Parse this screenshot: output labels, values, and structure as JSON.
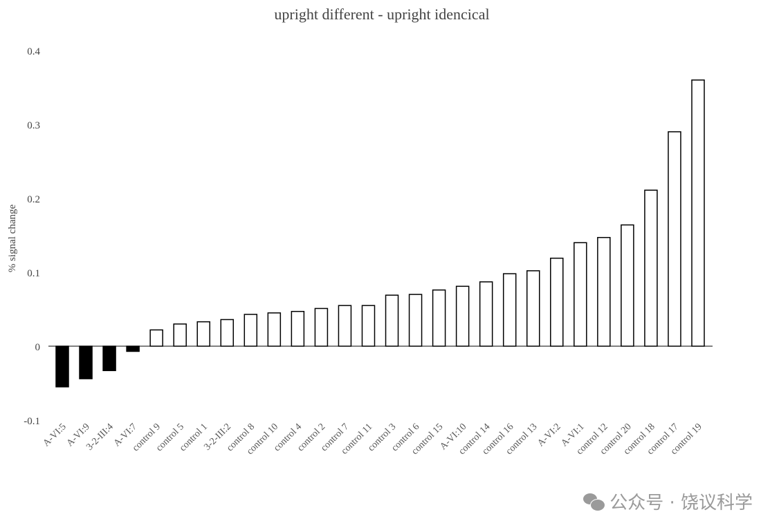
{
  "chart_data": {
    "type": "bar",
    "title": "upright different - upright idencical",
    "xlabel": "",
    "ylabel": "% signal change",
    "ylim": [
      -0.1,
      0.4
    ],
    "yticks": [
      -0.1,
      0,
      0.1,
      0.2,
      0.3,
      0.4
    ],
    "ytick_labels": [
      "-0.1",
      "0",
      "0.1",
      "0.2",
      "0.3",
      "0.4"
    ],
    "grid": false,
    "categories": [
      "A-VI:5",
      "A-VI:9",
      "3-2-III:4",
      "A-VI:7",
      "control 9",
      "control 5",
      "control 1",
      "3-2-III:2",
      "control 8",
      "control 10",
      "control 4",
      "control 2",
      "control 7",
      "control 11",
      "control 3",
      "control 6",
      "control 15",
      "A-VI:10",
      "control 14",
      "control 16",
      "control 13",
      "A-VI:2",
      "A-VI:1",
      "control 12",
      "control 20",
      "control 18",
      "control 17",
      "control 19"
    ],
    "values": [
      -0.055,
      -0.044,
      -0.033,
      -0.007,
      0.022,
      0.03,
      0.033,
      0.036,
      0.043,
      0.045,
      0.047,
      0.051,
      0.055,
      0.055,
      0.069,
      0.07,
      0.076,
      0.081,
      0.087,
      0.098,
      0.102,
      0.119,
      0.14,
      0.147,
      0.164,
      0.211,
      0.29,
      0.36
    ],
    "colors": {
      "negative": "#000000",
      "positive": "#ffffff",
      "outline": "#000000"
    }
  },
  "watermark": "公众号 · 饶议科学"
}
